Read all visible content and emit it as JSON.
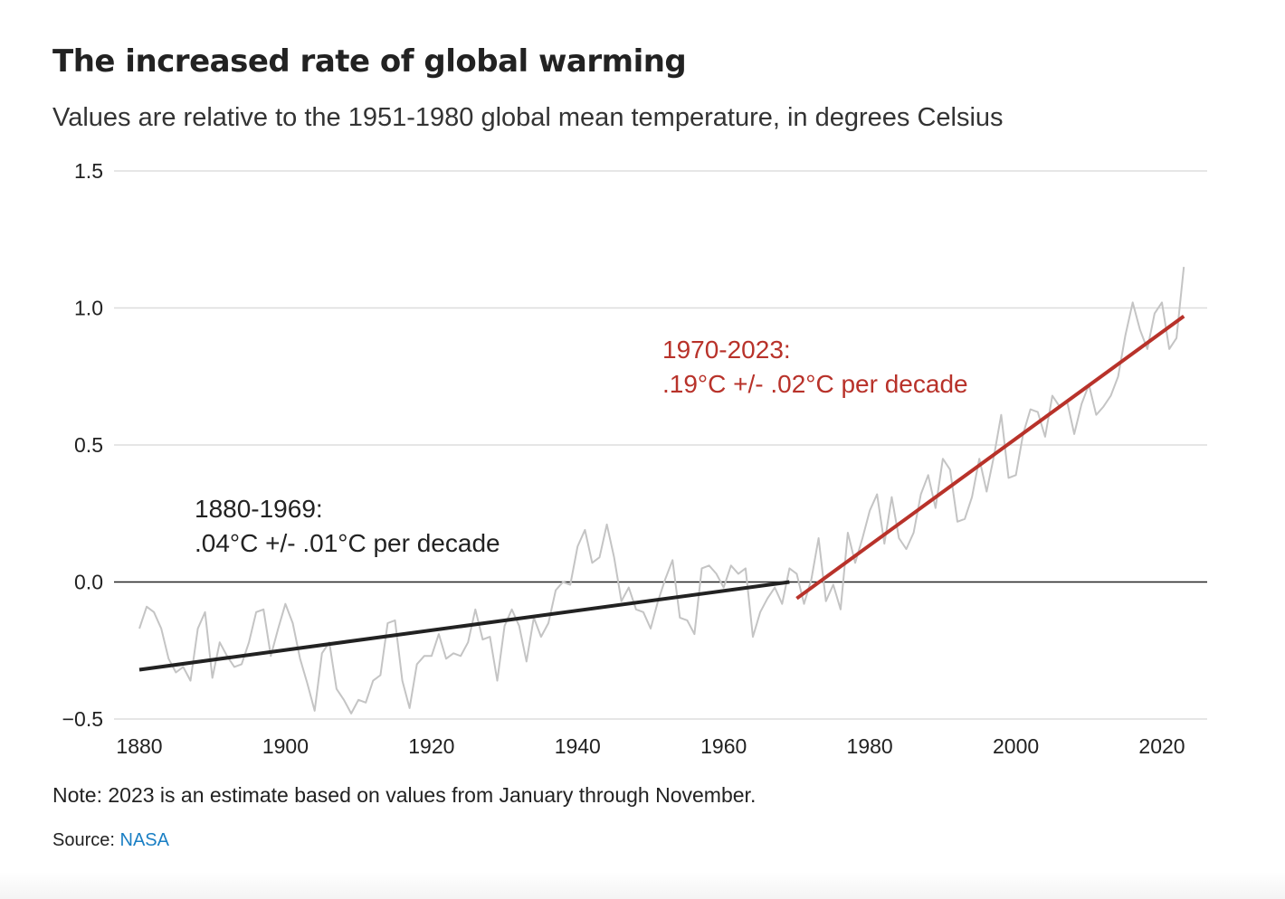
{
  "header": {
    "title": "The increased rate of global warming",
    "subtitle": "Values are relative to the 1951-1980 global mean temperature, in degrees Celsius"
  },
  "footer": {
    "note": "Note: 2023 is an estimate based on values from January through November.",
    "source_label": "Source:",
    "source_link": "NASA"
  },
  "colors": {
    "annual_line": "#c4c4c4",
    "early_trend": "#222222",
    "late_trend": "#b8322a",
    "gridline": "#dddddd",
    "zero_line": "#222222",
    "link": "#1a7fc4"
  },
  "chart_data": {
    "type": "line",
    "title": "The increased rate of global warming",
    "subtitle": "Values are relative to the 1951-1980 global mean temperature, in degrees Celsius",
    "xlim": [
      1880,
      2023
    ],
    "ylim": [
      -0.5,
      1.5
    ],
    "x_ticks": [
      1880,
      1900,
      1920,
      1940,
      1960,
      1980,
      2000,
      2020
    ],
    "y_ticks": [
      -0.5,
      0.0,
      0.5,
      1.0,
      1.5
    ],
    "y_tick_labels": [
      "−0.5",
      "0.0",
      "0.5",
      "1.0",
      "1.5"
    ],
    "grid": true,
    "series": [
      {
        "x": [
          1880,
          1881,
          1882,
          1883,
          1884,
          1885,
          1886,
          1887,
          1888,
          1889,
          1890,
          1891,
          1892,
          1893,
          1894,
          1895,
          1896,
          1897,
          1898,
          1899,
          1900,
          1901,
          1902,
          1903,
          1904,
          1905,
          1906,
          1907,
          1908,
          1909,
          1910,
          1911,
          1912,
          1913,
          1914,
          1915,
          1916,
          1917,
          1918,
          1919,
          1920,
          1921,
          1922,
          1923,
          1924,
          1925,
          1926,
          1927,
          1928,
          1929,
          1930,
          1931,
          1932,
          1933,
          1934,
          1935,
          1936,
          1937,
          1938,
          1939,
          1940,
          1941,
          1942,
          1943,
          1944,
          1945,
          1946,
          1947,
          1948,
          1949,
          1950,
          1951,
          1952,
          1953,
          1954,
          1955,
          1956,
          1957,
          1958,
          1959,
          1960,
          1961,
          1962,
          1963,
          1964,
          1965,
          1966,
          1967,
          1968,
          1969,
          1970,
          1971,
          1972,
          1973,
          1974,
          1975,
          1976,
          1977,
          1978,
          1979,
          1980,
          1981,
          1982,
          1983,
          1984,
          1985,
          1986,
          1987,
          1988,
          1989,
          1990,
          1991,
          1992,
          1993,
          1994,
          1995,
          1996,
          1997,
          1998,
          1999,
          2000,
          2001,
          2002,
          2003,
          2004,
          2005,
          2006,
          2007,
          2008,
          2009,
          2010,
          2011,
          2012,
          2013,
          2014,
          2015,
          2016,
          2017,
          2018,
          2019,
          2020,
          2021,
          2022,
          2023
        ],
        "values": [
          -0.17,
          -0.09,
          -0.11,
          -0.17,
          -0.28,
          -0.33,
          -0.31,
          -0.36,
          -0.17,
          -0.11,
          -0.35,
          -0.22,
          -0.27,
          -0.31,
          -0.3,
          -0.22,
          -0.11,
          -0.1,
          -0.27,
          -0.17,
          -0.08,
          -0.15,
          -0.28,
          -0.37,
          -0.47,
          -0.26,
          -0.22,
          -0.39,
          -0.43,
          -0.48,
          -0.43,
          -0.44,
          -0.36,
          -0.34,
          -0.15,
          -0.14,
          -0.36,
          -0.46,
          -0.3,
          -0.27,
          -0.27,
          -0.19,
          -0.28,
          -0.26,
          -0.27,
          -0.22,
          -0.1,
          -0.21,
          -0.2,
          -0.36,
          -0.16,
          -0.1,
          -0.16,
          -0.29,
          -0.13,
          -0.2,
          -0.15,
          -0.03,
          -0.0,
          -0.01,
          0.13,
          0.19,
          0.07,
          0.09,
          0.21,
          0.09,
          -0.07,
          -0.02,
          -0.1,
          -0.11,
          -0.17,
          -0.07,
          0.01,
          0.08,
          -0.13,
          -0.14,
          -0.19,
          0.05,
          0.06,
          0.03,
          -0.02,
          0.06,
          0.03,
          0.05,
          -0.2,
          -0.11,
          -0.06,
          -0.02,
          -0.08,
          0.05,
          0.03,
          -0.08,
          0.01,
          0.16,
          -0.07,
          -0.01,
          -0.1,
          0.18,
          0.07,
          0.16,
          0.26,
          0.32,
          0.14,
          0.31,
          0.16,
          0.12,
          0.18,
          0.32,
          0.39,
          0.27,
          0.45,
          0.41,
          0.22,
          0.23,
          0.31,
          0.45,
          0.33,
          0.46,
          0.61,
          0.38,
          0.39,
          0.54,
          0.63,
          0.62,
          0.53,
          0.68,
          0.64,
          0.66,
          0.54,
          0.65,
          0.72,
          0.61,
          0.64,
          0.68,
          0.75,
          0.9,
          1.02,
          0.92,
          0.85,
          0.98,
          1.02,
          0.85,
          0.89,
          1.15
        ]
      }
    ],
    "trends": [
      {
        "label_line1": "1880-1969:",
        "label_line2": ".04°C +/- .01°C per decade",
        "start": [
          1880,
          -0.32
        ],
        "end": [
          1969,
          0.0
        ]
      },
      {
        "label_line1": "1970-2023:",
        "label_line2": ".19°C +/- .02°C per decade",
        "start": [
          1970,
          -0.06
        ],
        "end": [
          2023,
          0.97
        ]
      }
    ]
  }
}
